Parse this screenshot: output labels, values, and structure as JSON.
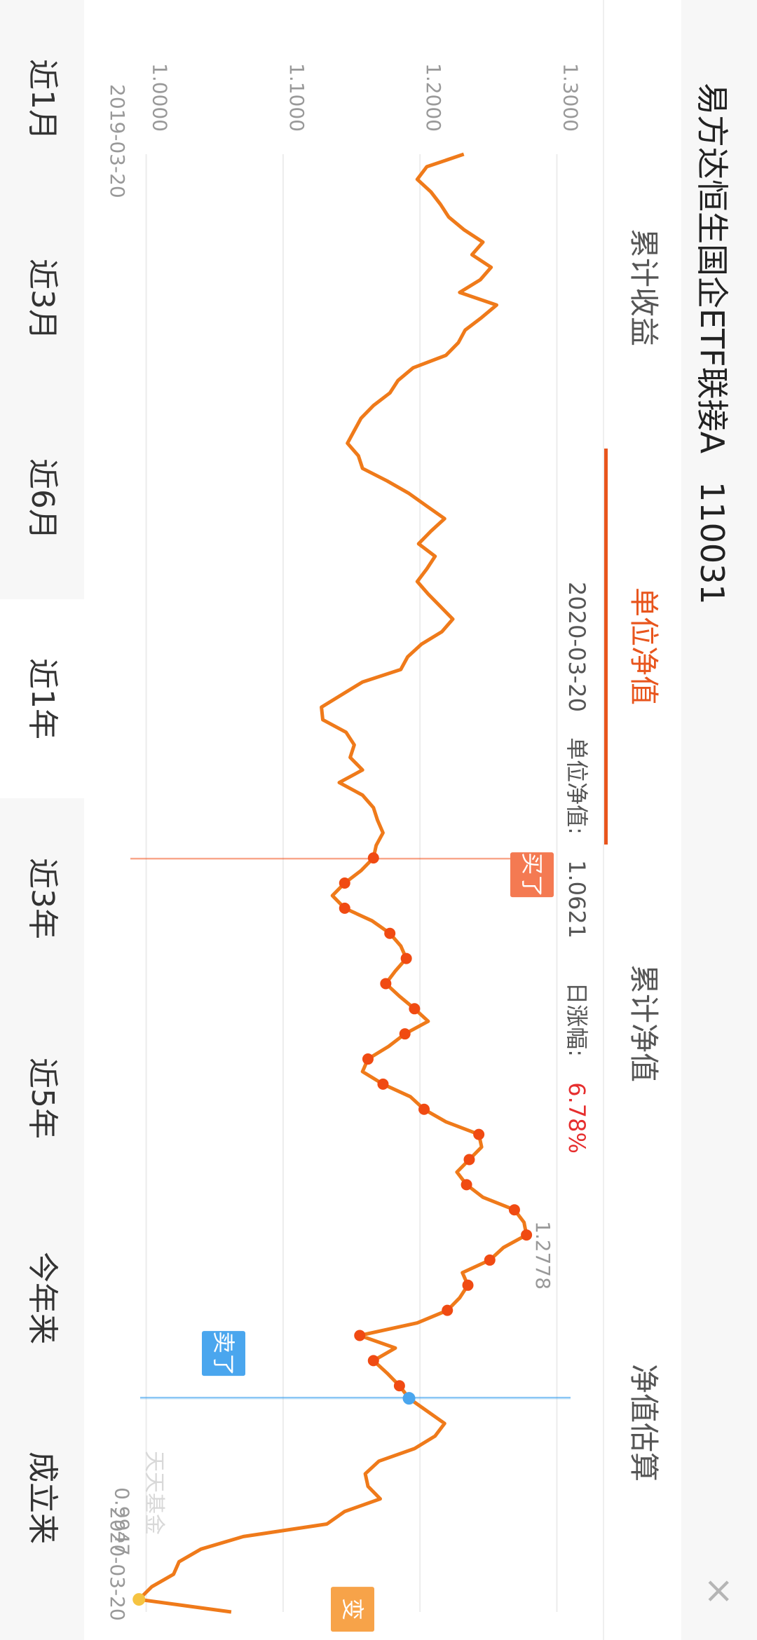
{
  "header": {
    "fund_name": "易方达恒生国企ETF联接A",
    "fund_code": "110031"
  },
  "tabs": [
    {
      "label": "累计收益",
      "active": false
    },
    {
      "label": "单位净值",
      "active": true
    },
    {
      "label": "累计净值",
      "active": false
    },
    {
      "label": "净值估算",
      "active": false
    }
  ],
  "info": {
    "date": "2020-03-20",
    "nav_label": "单位净值:",
    "nav_value": "1.0621",
    "change_label": "日涨幅:",
    "change_value": "6.78%"
  },
  "markers": {
    "buy": "买了",
    "sell": "卖了",
    "change": "变",
    "watermark": "天天基金"
  },
  "periods": [
    {
      "label": "近1月",
      "active": false
    },
    {
      "label": "近3月",
      "active": false
    },
    {
      "label": "近6月",
      "active": false
    },
    {
      "label": "近1年",
      "active": true
    },
    {
      "label": "近3年",
      "active": false
    },
    {
      "label": "近5年",
      "active": false
    },
    {
      "label": "今年来",
      "active": false
    },
    {
      "label": "成立来",
      "active": false
    }
  ],
  "colors": {
    "accent": "#e8551d",
    "line": "#ef7a1a",
    "buy_dot": "#f04a12",
    "sell": "#4aa6ee",
    "change": "#f7a349",
    "up": "#e62e2e"
  },
  "chart_data": {
    "type": "line",
    "title": "单位净值",
    "x_start": "2019-03-20",
    "x_end": "2020-03-20",
    "ylim": [
      0.97,
      1.31
    ],
    "yticks": [
      "1.0000",
      "1.1000",
      "1.2000",
      "1.3000"
    ],
    "ytick_values": [
      1.0,
      1.1,
      1.2,
      1.3
    ],
    "max_label": "1.2778",
    "max_value": 1.2778,
    "min_label": "0.9947",
    "min_value": 0.9947,
    "series": [
      {
        "name": "单位净值",
        "values": [
          1.232,
          1.205,
          1.198,
          1.208,
          1.215,
          1.221,
          1.232,
          1.246,
          1.238,
          1.252,
          1.244,
          1.229,
          1.256,
          1.245,
          1.233,
          1.228,
          1.219,
          1.195,
          1.184,
          1.178,
          1.166,
          1.157,
          1.152,
          1.147,
          1.155,
          1.158,
          1.176,
          1.192,
          1.205,
          1.218,
          1.208,
          1.199,
          1.211,
          1.205,
          1.198,
          1.206,
          1.215,
          1.224,
          1.216,
          1.201,
          1.191,
          1.186,
          1.158,
          1.143,
          1.128,
          1.129,
          1.146,
          1.152,
          1.149,
          1.158,
          1.141,
          1.158,
          1.166,
          1.169,
          1.173,
          1.168,
          1.166,
          1.157,
          1.145,
          1.136,
          1.145,
          1.165,
          1.178,
          1.186,
          1.19,
          1.182,
          1.175,
          1.185,
          1.196,
          1.206,
          1.189,
          1.177,
          1.162,
          1.158,
          1.173,
          1.193,
          1.203,
          1.219,
          1.243,
          1.245,
          1.236,
          1.227,
          1.234,
          1.246,
          1.269,
          1.276,
          1.2778,
          1.261,
          1.251,
          1.231,
          1.235,
          1.229,
          1.22,
          1.198,
          1.156,
          1.182,
          1.166,
          1.176,
          1.185,
          1.192,
          1.205,
          1.218,
          1.211,
          1.196,
          1.17,
          1.16,
          1.162,
          1.171,
          1.145,
          1.132,
          1.071,
          1.04,
          1.024,
          1.02,
          1.004,
          0.9947,
          1.0621
        ]
      },
      {
        "name": "买了",
        "values": []
      }
    ],
    "buy_start_index": 56,
    "sell_index": 99,
    "change_index": 115
  }
}
